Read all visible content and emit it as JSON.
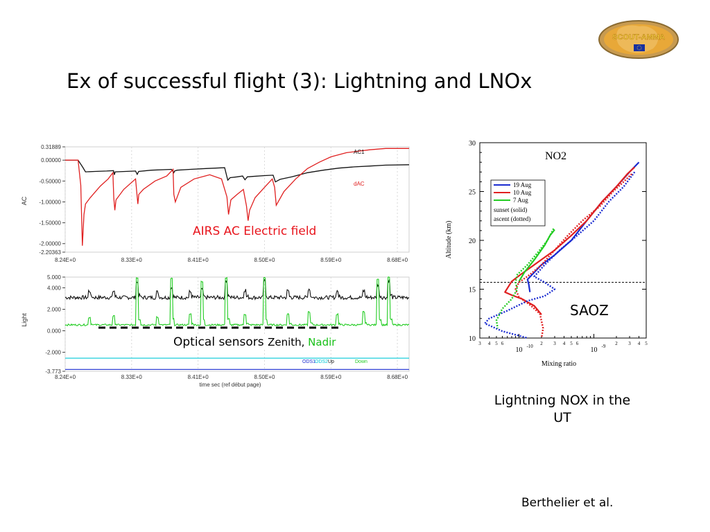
{
  "slide": {
    "title": "Ex of successful flight (3): Lightning and LNOx",
    "logo_text": "SCOUT-AMMA",
    "caption_ac": "AIRS AC Electric field",
    "caption_optical_main": "Optical sensors ",
    "caption_optical_zenith": "Zenith, ",
    "caption_optical_nadir": "Nadir",
    "saoz_label": "SAOZ",
    "lnox_caption": "Lightning NOX in the UT",
    "credit": "Berthelier et al."
  },
  "colors": {
    "title_red": "#e8141c",
    "nadir_green": "#18c018",
    "ac_red": "#e02020",
    "light_green": "#22cc22",
    "blue": "#1a2bd0",
    "cyan": "#00c8d8",
    "logo_fill": "#e8a838",
    "logo_text": "#f0c830",
    "logo_flag": "#1830a0"
  },
  "chart_data": [
    {
      "type": "line",
      "name": "ac",
      "ylabel": "AC",
      "xlim": [
        8.24,
        8.68
      ],
      "x_ticks": [
        "8.24E+0",
        "8.33E+0",
        "8.41E+0",
        "8.50E+0",
        "8.59E+0",
        "8.68E+0"
      ],
      "x_tick_values": [
        8.24,
        8.325,
        8.41,
        8.495,
        8.58,
        8.665
      ],
      "ylim": [
        -2.2036,
        0.3189
      ],
      "y_ticks": [
        "0.31889",
        "0.00000",
        "-0.50000",
        "-1.00000",
        "-1.50000",
        "-2.00000",
        "-2.20363"
      ],
      "y_tick_values": [
        0.31889,
        0,
        -0.5,
        -1,
        -1.5,
        -2,
        -2.20363
      ],
      "series": [
        {
          "name": "AC1",
          "color": "#111111",
          "x": [
            8.24,
            8.2565,
            8.2625,
            8.266,
            8.278,
            8.293,
            8.3018,
            8.303,
            8.304,
            8.33,
            8.3322,
            8.334,
            8.35,
            8.376,
            8.379,
            8.38,
            8.383,
            8.4,
            8.42,
            8.444,
            8.448,
            8.451,
            8.46,
            8.467,
            8.47,
            8.473,
            8.48,
            8.495,
            8.506,
            8.509,
            8.515,
            8.53,
            8.55,
            8.57,
            8.59,
            8.61,
            8.63,
            8.65,
            8.68
          ],
          "y": [
            0.0,
            0.0,
            -0.17,
            -0.28,
            -0.27,
            -0.26,
            -0.25,
            -0.35,
            -0.28,
            -0.26,
            -0.34,
            -0.27,
            -0.24,
            -0.22,
            -0.3,
            -0.26,
            -0.24,
            -0.22,
            -0.2,
            -0.18,
            -0.48,
            -0.42,
            -0.4,
            -0.38,
            -0.47,
            -0.4,
            -0.39,
            -0.37,
            -0.36,
            -0.52,
            -0.46,
            -0.4,
            -0.3,
            -0.24,
            -0.19,
            -0.16,
            -0.14,
            -0.12,
            -0.11
          ]
        },
        {
          "name": "dAC",
          "color": "#e02020",
          "x": [
            8.24,
            8.2565,
            8.26,
            8.262,
            8.264,
            8.266,
            8.272,
            8.285,
            8.295,
            8.301,
            8.3022,
            8.3035,
            8.305,
            8.315,
            8.33,
            8.333,
            8.3342,
            8.34,
            8.355,
            8.37,
            8.378,
            8.379,
            8.381,
            8.388,
            8.405,
            8.425,
            8.44,
            8.447,
            8.449,
            8.452,
            8.46,
            8.468,
            8.472,
            8.474,
            8.476,
            8.483,
            8.495,
            8.505,
            8.508,
            8.51,
            8.52,
            8.535,
            8.55,
            8.565,
            8.58,
            8.6,
            8.63,
            8.65,
            8.68
          ],
          "y": [
            0.0,
            0.0,
            -0.6,
            -2.05,
            -1.3,
            -1.05,
            -0.9,
            -0.62,
            -0.45,
            -0.3,
            -0.9,
            -1.2,
            -0.95,
            -0.7,
            -0.45,
            -1.05,
            -0.82,
            -0.7,
            -0.5,
            -0.38,
            -0.22,
            -0.82,
            -1.0,
            -0.65,
            -0.45,
            -0.35,
            -0.45,
            -0.88,
            -1.3,
            -0.95,
            -0.82,
            -0.7,
            -1.1,
            -1.45,
            -1.2,
            -0.9,
            -0.65,
            -0.45,
            -0.65,
            -1.08,
            -0.75,
            -0.45,
            -0.2,
            -0.05,
            0.08,
            0.18,
            0.25,
            0.28,
            0.28
          ]
        }
      ]
    },
    {
      "type": "line",
      "name": "light",
      "ylabel": "Light",
      "xlabel": "time sec (ref début page)",
      "xlim": [
        8.24,
        8.68
      ],
      "x_ticks": [
        "8.24E+0",
        "8.33E+0",
        "8.41E+0",
        "8.50E+0",
        "8.59E+0",
        "8.68E+0"
      ],
      "x_tick_values": [
        8.24,
        8.325,
        8.41,
        8.495,
        8.58,
        8.665
      ],
      "ylim": [
        -3.773,
        5.0
      ],
      "y_ticks": [
        "5.000",
        "4.000",
        "2.000",
        "0.000",
        "-2.000",
        "-3.773"
      ],
      "y_tick_values": [
        5,
        4,
        2,
        0,
        -2,
        -3.773
      ],
      "legend": [
        "ODS1",
        "ODS2",
        "Up",
        "Down"
      ],
      "series": [
        {
          "name": "Up",
          "color": "#111111",
          "x": [
            8.24,
            8.68
          ],
          "y": [
            3.1,
            3.1
          ],
          "flash_x": [
            8.271,
            8.302,
            8.332,
            8.358,
            8.376,
            8.4,
            8.415,
            8.446,
            8.47,
            8.495,
            8.525,
            8.552,
            8.588,
            8.622,
            8.64,
            8.654
          ],
          "flash_amp": [
            0.6,
            0.6,
            1.4,
            0.5,
            0.9,
            0.5,
            0.7,
            1.6,
            0.7,
            1.5,
            0.6,
            0.8,
            0.6,
            0.6,
            1.2,
            1.6
          ]
        },
        {
          "name": "Down",
          "color": "#22cc22",
          "x": [
            8.24,
            8.68
          ],
          "y": [
            0.55,
            0.55
          ],
          "flash_x": [
            8.271,
            8.302,
            8.332,
            8.358,
            8.376,
            8.4,
            8.415,
            8.446,
            8.47,
            8.495,
            8.525,
            8.552,
            8.588,
            8.622,
            8.64,
            8.654
          ],
          "flash_amp": [
            0.7,
            0.8,
            4.4,
            0.7,
            4.3,
            1.0,
            4.0,
            4.4,
            1.0,
            4.4,
            1.0,
            1.2,
            1.0,
            1.2,
            4.3,
            4.4
          ]
        },
        {
          "name": "ODS1",
          "color": "#1a2bd0",
          "x": [
            8.24,
            8.68
          ],
          "y": [
            -3.6,
            -3.6
          ]
        },
        {
          "name": "ODS2",
          "color": "#00c8d8",
          "x": [
            8.24,
            8.68
          ],
          "y": [
            -2.55,
            -2.55
          ]
        }
      ]
    },
    {
      "type": "line",
      "name": "no2",
      "title": "NO2",
      "xlabel": "Mixing ratio",
      "ylabel": "Altitude (km)",
      "x_log": true,
      "xlim": [
        3e-11,
        5e-09
      ],
      "ylim": [
        10,
        30
      ],
      "y_ticks": [
        10,
        15,
        20,
        25,
        30
      ],
      "hline": 15.7,
      "legend": [
        "19 Aug",
        "10 Aug",
        "7 Aug",
        "sunset (solid)",
        "ascent (dotted)"
      ],
      "series": [
        {
          "name": "19 Aug",
          "style": "solid",
          "color": "#1a2bd0",
          "x": [
            4e-09,
            3e-09,
            2e-09,
            1.3e-09,
            8e-10,
            5e-10,
            3e-10,
            2e-10,
            1.5e-10,
            1.3e-10,
            1.35e-10,
            1.4e-10
          ],
          "y": [
            28,
            27,
            25.5,
            24,
            22,
            20,
            18.5,
            17.5,
            16.5,
            16,
            15.5,
            14.7
          ]
        },
        {
          "name": "10 Aug",
          "style": "solid",
          "color": "#e02020",
          "x": [
            3.5e-09,
            2.8e-09,
            2e-09,
            1.3e-09,
            8e-10,
            5e-10,
            3e-10,
            1.6e-10,
            1.05e-10,
            8e-11,
            6.5e-11,
            8e-11,
            1.1e-10,
            1.6e-10,
            2e-10
          ],
          "y": [
            27.5,
            26.8,
            25.5,
            24,
            22,
            20.5,
            19,
            17.5,
            16.5,
            15.8,
            14.7,
            14.4,
            14.0,
            13.3,
            12.4
          ]
        },
        {
          "name": "7 Aug",
          "style": "solid",
          "color": "#22cc22",
          "x": [
            3e-10,
            2.6e-10,
            2.2e-10,
            1.6e-10,
            1.2e-10,
            1e-10
          ],
          "y": [
            21.1,
            20.5,
            19.5,
            18,
            16.8,
            15.8
          ]
        },
        {
          "name": "19 Aug",
          "style": "dotted",
          "color": "#1a2bd0",
          "x": [
            3.5e-09,
            2.5e-09,
            1.6e-09,
            1e-09,
            6e-10,
            3.5e-10,
            2.2e-10,
            1.6e-10,
            2.2e-10,
            3e-10,
            2.2e-10,
            1.3e-10,
            7e-11,
            4e-11,
            3.5e-11,
            6e-11,
            1.3e-10
          ],
          "y": [
            27,
            25.5,
            24,
            22,
            20.5,
            19,
            17.5,
            16.3,
            15.7,
            15,
            14.3,
            13.8,
            12.8,
            12.0,
            11.5,
            10.7,
            10
          ]
        },
        {
          "name": "10 Aug",
          "style": "dotted",
          "color": "#e02020",
          "x": [
            3.2e-09,
            2.5e-09,
            1.8e-09,
            1.2e-09,
            7e-10,
            4.5e-10,
            3e-10,
            2e-10,
            1.4e-10,
            1e-10,
            9e-11,
            1e-10,
            1.4e-10,
            1.9e-10,
            2.1e-10,
            2e-10
          ],
          "y": [
            26.8,
            26,
            25,
            23.5,
            22,
            20.5,
            19,
            17.5,
            16.5,
            15.7,
            15,
            14.2,
            13.4,
            12.5,
            11,
            10
          ]
        },
        {
          "name": "7 Aug",
          "style": "dotted",
          "color": "#22cc22",
          "x": [
            2.9e-10,
            2.4e-10,
            1.8e-10,
            1.3e-10,
            9.5e-11,
            9e-11,
            9.5e-11,
            8e-11,
            6e-11,
            5e-11,
            5.2e-11
          ],
          "y": [
            21.2,
            20,
            18.8,
            17.5,
            16.5,
            15.7,
            15,
            14,
            13,
            11.8,
            11
          ]
        }
      ]
    }
  ]
}
